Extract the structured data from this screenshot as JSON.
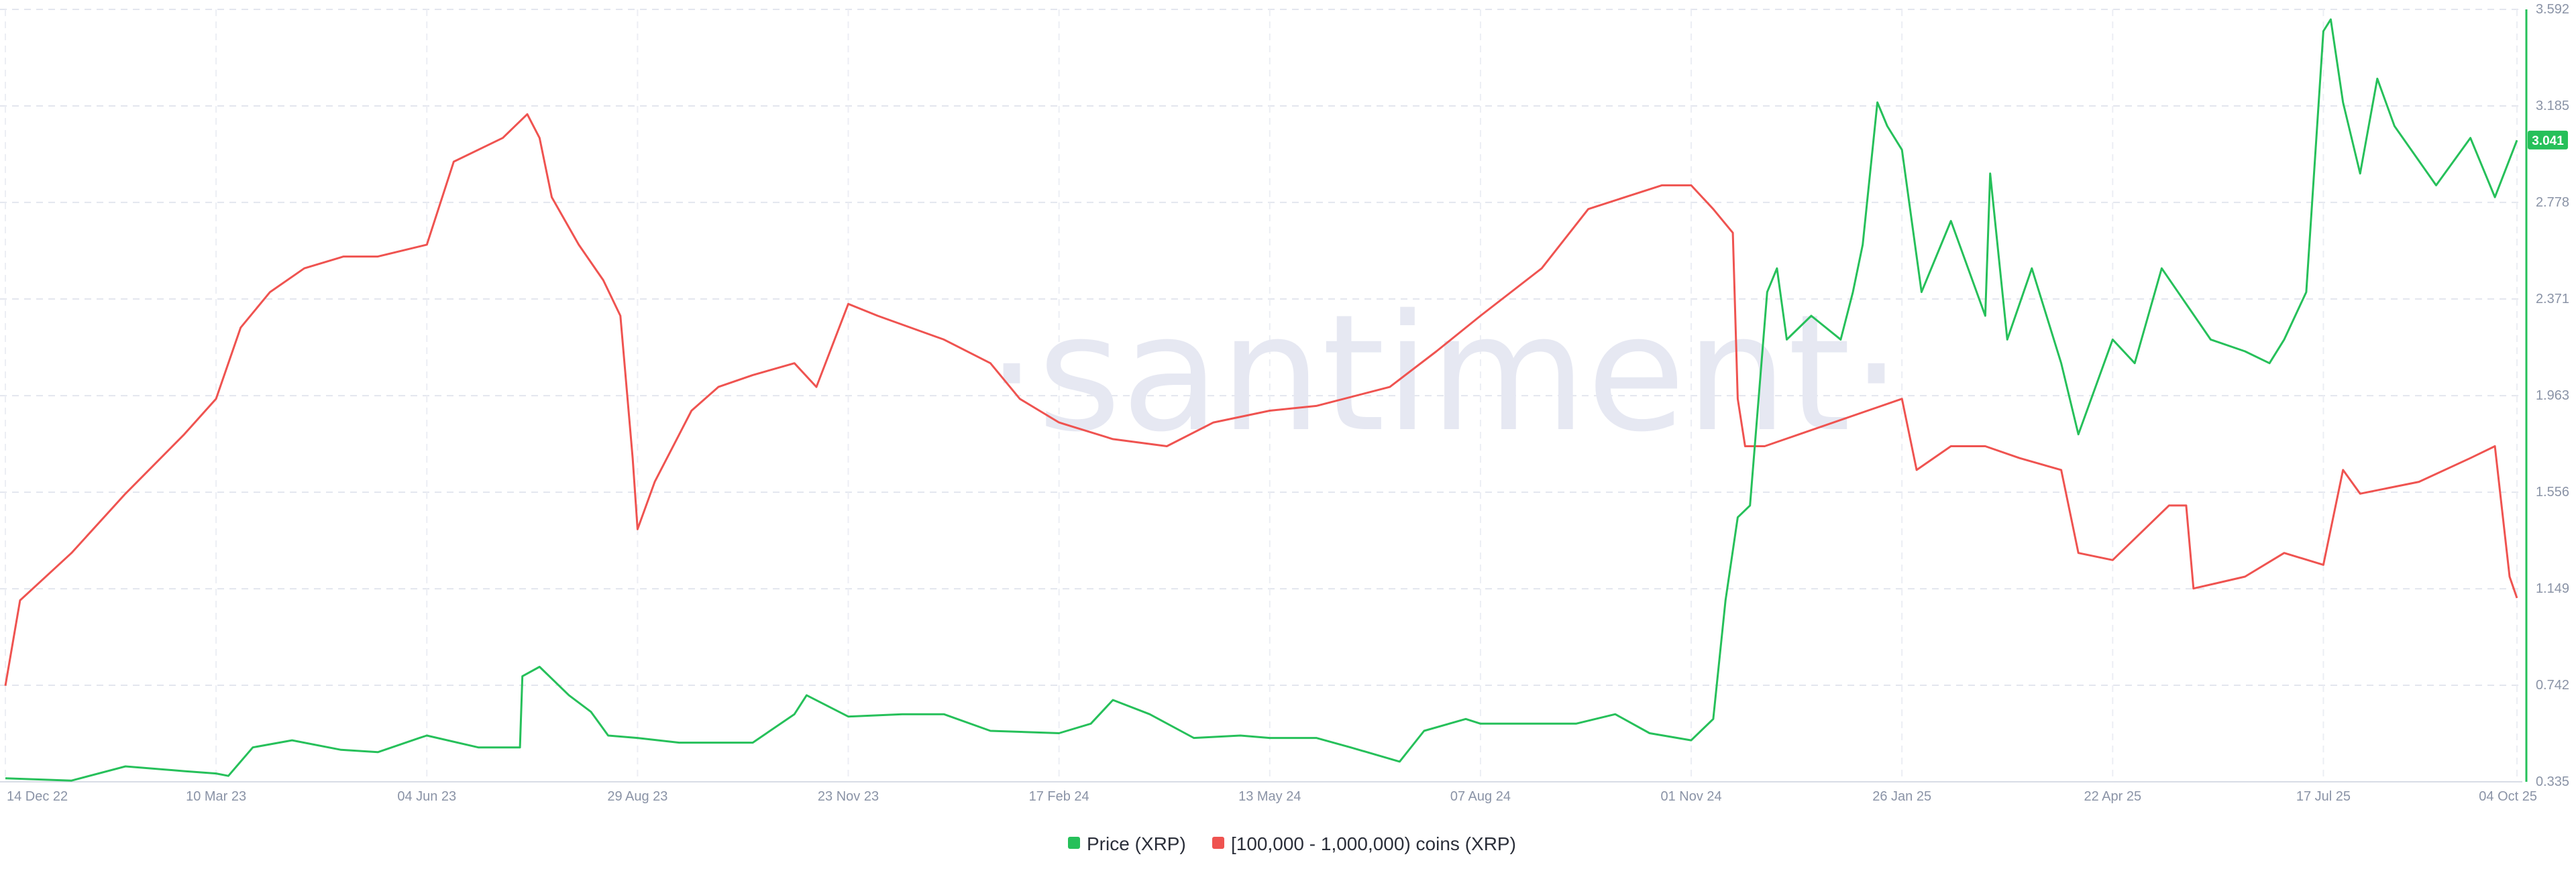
{
  "watermark": "·santiment·",
  "chart_data": {
    "type": "line",
    "x_ticks": [
      "14 Dec 22",
      "10 Mar 23",
      "04 Jun 23",
      "29 Aug 23",
      "23 Nov 23",
      "17 Feb 24",
      "13 May 24",
      "07 Aug 24",
      "01 Nov 24",
      "26 Jan 25",
      "22 Apr 25",
      "17 Jul 25",
      "04 Oct 25"
    ],
    "right_axis": {
      "ticks": [
        "0.335",
        "0.742",
        "1.149",
        "1.556",
        "1.963",
        "2.371",
        "2.778",
        "3.185",
        "3.592"
      ],
      "range": [
        0.335,
        3.592
      ],
      "current_value_label": "3.041"
    },
    "grid": true,
    "legend_placement": "bottom-center",
    "series": [
      {
        "name": "Price (XRP)",
        "color": "#26c05a",
        "axis": "right",
        "points": [
          [
            "14 Dec 22",
            0.35
          ],
          [
            "10 Jan 23",
            0.34
          ],
          [
            "01 Feb 23",
            0.4
          ],
          [
            "25 Feb 23",
            0.38
          ],
          [
            "10 Mar 23",
            0.37
          ],
          [
            "15 Mar 23",
            0.36
          ],
          [
            "25 Mar 23",
            0.48
          ],
          [
            "10 Apr 23",
            0.51
          ],
          [
            "30 Apr 23",
            0.47
          ],
          [
            "15 May 23",
            0.46
          ],
          [
            "01 Jun 23",
            0.52
          ],
          [
            "04 Jun 23",
            0.53
          ],
          [
            "25 Jun 23",
            0.48
          ],
          [
            "12 Jul 23",
            0.48
          ],
          [
            "13 Jul 23",
            0.78
          ],
          [
            "20 Jul 23",
            0.82
          ],
          [
            "01 Aug 23",
            0.7
          ],
          [
            "10 Aug 23",
            0.63
          ],
          [
            "17 Aug 23",
            0.53
          ],
          [
            "29 Aug 23",
            0.52
          ],
          [
            "15 Sep 23",
            0.5
          ],
          [
            "15 Oct 23",
            0.5
          ],
          [
            "01 Nov 23",
            0.62
          ],
          [
            "06 Nov 23",
            0.7
          ],
          [
            "23 Nov 23",
            0.61
          ],
          [
            "15 Dec 23",
            0.62
          ],
          [
            "01 Jan 24",
            0.62
          ],
          [
            "20 Jan 24",
            0.55
          ],
          [
            "17 Feb 24",
            0.54
          ],
          [
            "01 Mar 24",
            0.58
          ],
          [
            "10 Mar 24",
            0.68
          ],
          [
            "25 Mar 24",
            0.62
          ],
          [
            "12 Apr 24",
            0.52
          ],
          [
            "01 May 24",
            0.53
          ],
          [
            "13 May 24",
            0.52
          ],
          [
            "01 Jun 24",
            0.52
          ],
          [
            "15 Jun 24",
            0.48
          ],
          [
            "05 Jul 24",
            0.42
          ],
          [
            "15 Jul 24",
            0.55
          ],
          [
            "01 Aug 24",
            0.6
          ],
          [
            "07 Aug 24",
            0.58
          ],
          [
            "01 Sep 24",
            0.58
          ],
          [
            "15 Sep 24",
            0.58
          ],
          [
            "01 Oct 24",
            0.62
          ],
          [
            "15 Oct 24",
            0.54
          ],
          [
            "01 Nov 24",
            0.51
          ],
          [
            "10 Nov 24",
            0.6
          ],
          [
            "15 Nov 24",
            1.1
          ],
          [
            "20 Nov 24",
            1.45
          ],
          [
            "25 Nov 24",
            1.5
          ],
          [
            "02 Dec 24",
            2.4
          ],
          [
            "06 Dec 24",
            2.5
          ],
          [
            "10 Dec 24",
            2.2
          ],
          [
            "20 Dec 24",
            2.3
          ],
          [
            "01 Jan 25",
            2.2
          ],
          [
            "06 Jan 25",
            2.4
          ],
          [
            "10 Jan 25",
            2.6
          ],
          [
            "16 Jan 25",
            3.2
          ],
          [
            "20 Jan 25",
            3.1
          ],
          [
            "26 Jan 25",
            3.0
          ],
          [
            "03 Feb 25",
            2.4
          ],
          [
            "15 Feb 25",
            2.7
          ],
          [
            "01 Mar 25",
            2.3
          ],
          [
            "03 Mar 25",
            2.9
          ],
          [
            "10 Mar 25",
            2.2
          ],
          [
            "20 Mar 25",
            2.5
          ],
          [
            "01 Apr 25",
            2.1
          ],
          [
            "08 Apr 25",
            1.8
          ],
          [
            "22 Apr 25",
            2.2
          ],
          [
            "01 May 25",
            2.1
          ],
          [
            "12 May 25",
            2.5
          ],
          [
            "01 Jun 25",
            2.2
          ],
          [
            "15 Jun 25",
            2.15
          ],
          [
            "25 Jun 25",
            2.1
          ],
          [
            "01 Jul 25",
            2.2
          ],
          [
            "10 Jul 25",
            2.4
          ],
          [
            "17 Jul 25",
            3.5
          ],
          [
            "20 Jul 25",
            3.55
          ],
          [
            "25 Jul 25",
            3.2
          ],
          [
            "01 Aug 25",
            2.9
          ],
          [
            "08 Aug 25",
            3.3
          ],
          [
            "15 Aug 25",
            3.1
          ],
          [
            "01 Sep 25",
            2.85
          ],
          [
            "15 Sep 25",
            3.05
          ],
          [
            "25 Sep 25",
            2.8
          ],
          [
            "04 Oct 25",
            3.04
          ]
        ]
      },
      {
        "name": "[100,000  - 1,000,000) coins (XRP)",
        "color": "#ef5350",
        "axis": "hidden-left",
        "points": [
          [
            "14 Dec 22",
            0.74
          ],
          [
            "20 Dec 22",
            1.1
          ],
          [
            "10 Jan 23",
            1.3
          ],
          [
            "01 Feb 23",
            1.55
          ],
          [
            "25 Feb 23",
            1.8
          ],
          [
            "10 Mar 23",
            1.95
          ],
          [
            "20 Mar 23",
            2.25
          ],
          [
            "01 Apr 23",
            2.4
          ],
          [
            "15 Apr 23",
            2.5
          ],
          [
            "01 May 23",
            2.55
          ],
          [
            "15 May 23",
            2.55
          ],
          [
            "04 Jun 23",
            2.6
          ],
          [
            "15 Jun 23",
            2.95
          ],
          [
            "05 Jul 23",
            3.05
          ],
          [
            "15 Jul 23",
            3.15
          ],
          [
            "20 Jul 23",
            3.05
          ],
          [
            "25 Jul 23",
            2.8
          ],
          [
            "05 Aug 23",
            2.6
          ],
          [
            "15 Aug 23",
            2.45
          ],
          [
            "22 Aug 23",
            2.3
          ],
          [
            "27 Aug 23",
            1.7
          ],
          [
            "29 Aug 23",
            1.4
          ],
          [
            "05 Sep 23",
            1.6
          ],
          [
            "20 Sep 23",
            1.9
          ],
          [
            "01 Oct 23",
            2.0
          ],
          [
            "15 Oct 23",
            2.05
          ],
          [
            "01 Nov 23",
            2.1
          ],
          [
            "10 Nov 23",
            2.0
          ],
          [
            "23 Nov 23",
            2.35
          ],
          [
            "05 Dec 23",
            2.3
          ],
          [
            "01 Jan 24",
            2.2
          ],
          [
            "20 Jan 24",
            2.1
          ],
          [
            "01 Feb 24",
            1.95
          ],
          [
            "17 Feb 24",
            1.85
          ],
          [
            "10 Mar 24",
            1.78
          ],
          [
            "01 Apr 24",
            1.75
          ],
          [
            "20 Apr 24",
            1.85
          ],
          [
            "13 May 24",
            1.9
          ],
          [
            "01 Jun 24",
            1.92
          ],
          [
            "01 Jul 24",
            2.0
          ],
          [
            "20 Jul 24",
            2.15
          ],
          [
            "07 Aug 24",
            2.3
          ],
          [
            "01 Sep 24",
            2.5
          ],
          [
            "20 Sep 24",
            2.75
          ],
          [
            "05 Oct 24",
            2.8
          ],
          [
            "20 Oct 24",
            2.85
          ],
          [
            "01 Nov 24",
            2.85
          ],
          [
            "10 Nov 24",
            2.75
          ],
          [
            "18 Nov 24",
            2.65
          ],
          [
            "20 Nov 24",
            1.95
          ],
          [
            "23 Nov 24",
            1.75
          ],
          [
            "01 Dec 24",
            1.75
          ],
          [
            "15 Dec 24",
            1.8
          ],
          [
            "26 Jan 25",
            1.95
          ],
          [
            "01 Feb 25",
            1.65
          ],
          [
            "15 Feb 25",
            1.75
          ],
          [
            "01 Mar 25",
            1.75
          ],
          [
            "15 Mar 25",
            1.7
          ],
          [
            "01 Apr 25",
            1.65
          ],
          [
            "08 Apr 25",
            1.3
          ],
          [
            "22 Apr 25",
            1.27
          ],
          [
            "05 May 25",
            1.4
          ],
          [
            "15 May 25",
            1.5
          ],
          [
            "22 May 25",
            1.5
          ],
          [
            "25 May 25",
            1.15
          ],
          [
            "15 Jun 25",
            1.2
          ],
          [
            "01 Jul 25",
            1.3
          ],
          [
            "17 Jul 25",
            1.25
          ],
          [
            "25 Jul 25",
            1.65
          ],
          [
            "01 Aug 25",
            1.55
          ],
          [
            "25 Aug 25",
            1.6
          ],
          [
            "15 Sep 25",
            1.7
          ],
          [
            "25 Sep 25",
            1.75
          ],
          [
            "01 Oct 25",
            1.2
          ],
          [
            "04 Oct 25",
            1.11
          ]
        ]
      }
    ]
  },
  "legend": {
    "price_label": "Price (XRP)",
    "holders_label": "[100,000  - 1,000,000) coins (XRP)"
  }
}
